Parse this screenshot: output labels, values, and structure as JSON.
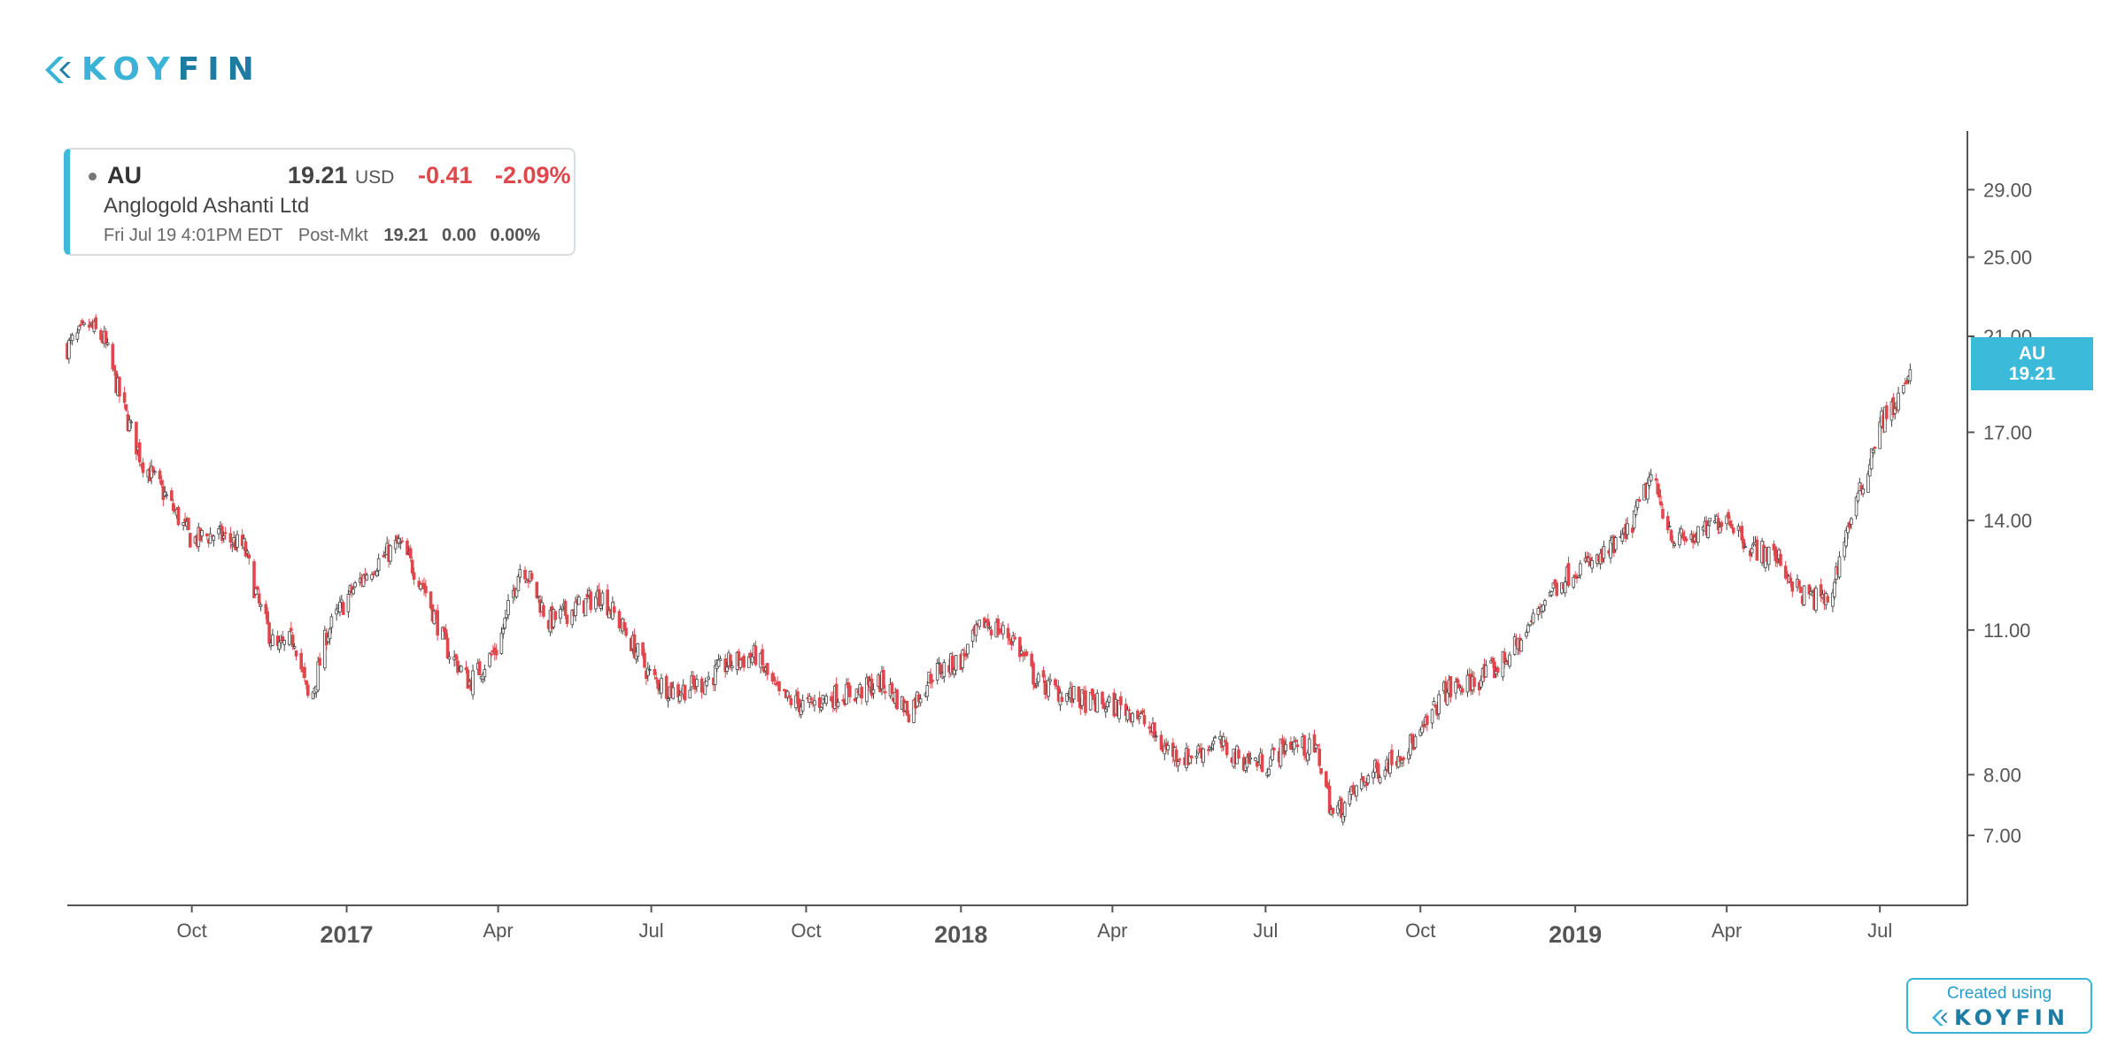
{
  "brand": {
    "wordmark_a": "KOY",
    "wordmark_b": "FIN"
  },
  "quote": {
    "ticker": "AU",
    "price": "19.21",
    "currency": "USD",
    "change": "-0.41",
    "change_pct": "-2.09%",
    "name": "Anglogold Ashanti Ltd",
    "timestamp": "Fri Jul 19 4:01PM EDT",
    "session": "Post-Mkt",
    "post_price": "19.21",
    "post_change": "0.00",
    "post_change_pct": "0.00%"
  },
  "price_tag": {
    "ticker": "AU",
    "price": "19.21"
  },
  "footer": {
    "created_using": "Created using",
    "wordmark": "KOYFIN"
  },
  "colors": {
    "up": "#444444",
    "down": "#e0474c",
    "accent": "#3bbad9",
    "axis": "#555555"
  },
  "chart_data": {
    "type": "line",
    "title": "",
    "xlabel": "",
    "ylabel": "",
    "series": [
      {
        "name": "AU",
        "x": [
          "2016-07-19",
          "2016-08-01",
          "2016-08-10",
          "2016-08-20",
          "2016-09-01",
          "2016-09-15",
          "2016-10-01",
          "2016-10-15",
          "2016-11-01",
          "2016-11-10",
          "2016-11-20",
          "2016-12-01",
          "2016-12-10",
          "2016-12-20",
          "2017-01-01",
          "2017-01-15",
          "2017-02-01",
          "2017-02-15",
          "2017-03-01",
          "2017-03-15",
          "2017-04-01",
          "2017-04-15",
          "2017-05-01",
          "2017-05-15",
          "2017-06-01",
          "2017-06-15",
          "2017-07-01",
          "2017-07-15",
          "2017-08-01",
          "2017-08-15",
          "2017-09-01",
          "2017-09-15",
          "2017-10-01",
          "2017-10-15",
          "2017-11-01",
          "2017-11-15",
          "2017-12-01",
          "2017-12-15",
          "2018-01-01",
          "2018-01-15",
          "2018-02-01",
          "2018-02-15",
          "2018-03-01",
          "2018-03-15",
          "2018-04-01",
          "2018-04-15",
          "2018-05-01",
          "2018-05-15",
          "2018-06-01",
          "2018-06-15",
          "2018-07-01",
          "2018-07-15",
          "2018-08-01",
          "2018-08-10",
          "2018-08-20",
          "2018-09-01",
          "2018-09-15",
          "2018-10-01",
          "2018-10-15",
          "2018-11-01",
          "2018-11-15",
          "2018-12-01",
          "2018-12-15",
          "2019-01-01",
          "2019-01-15",
          "2019-02-01",
          "2019-02-15",
          "2019-03-01",
          "2019-03-15",
          "2019-04-01",
          "2019-04-15",
          "2019-05-01",
          "2019-05-15",
          "2019-06-01",
          "2019-06-10",
          "2019-06-20",
          "2019-07-01",
          "2019-07-10",
          "2019-07-19"
        ],
        "values": [
          20.5,
          21.5,
          20.8,
          18.2,
          16.0,
          14.8,
          13.4,
          13.6,
          13.2,
          11.6,
          10.5,
          10.8,
          9.3,
          10.9,
          11.8,
          12.6,
          13.3,
          12.2,
          10.6,
          9.8,
          10.6,
          12.8,
          11.2,
          11.5,
          11.9,
          11.0,
          9.9,
          9.6,
          9.8,
          10.2,
          10.4,
          9.5,
          9.3,
          9.5,
          9.6,
          9.8,
          9.2,
          10.0,
          10.3,
          11.2,
          10.8,
          9.8,
          9.6,
          9.4,
          9.3,
          9.2,
          8.5,
          8.3,
          8.6,
          8.3,
          8.2,
          8.6,
          8.4,
          7.3,
          7.6,
          8.0,
          8.3,
          8.7,
          9.6,
          9.8,
          10.1,
          10.8,
          11.9,
          12.6,
          12.8,
          13.6,
          15.4,
          13.4,
          13.5,
          14.2,
          13.2,
          12.9,
          11.9,
          11.7,
          13.5,
          15.0,
          17.4,
          18.0,
          19.21
        ]
      }
    ],
    "x_ticks": [
      "Oct",
      "2017",
      "Apr",
      "Jul",
      "Oct",
      "2018",
      "Apr",
      "Jul",
      "Oct",
      "2019",
      "Apr",
      "Jul"
    ],
    "x_tick_dates": [
      "2016-10-01",
      "2017-01-01",
      "2017-04-01",
      "2017-07-01",
      "2017-10-01",
      "2018-01-01",
      "2018-04-01",
      "2018-07-01",
      "2018-10-01",
      "2019-01-01",
      "2019-04-01",
      "2019-07-01"
    ],
    "y_ticks": [
      7.0,
      8.0,
      11.0,
      14.0,
      17.0,
      21.0,
      25.0,
      29.0
    ],
    "y_tick_labels": [
      "7.00",
      "8.00",
      "11.00",
      "14.00",
      "17.00",
      "21.00",
      "25.00",
      "29.00"
    ],
    "y_scale": "log",
    "ylim": [
      6.0,
      33.0
    ],
    "xlim": [
      "2016-07-19",
      "2019-08-22"
    ],
    "grid": false,
    "legend": "none"
  }
}
